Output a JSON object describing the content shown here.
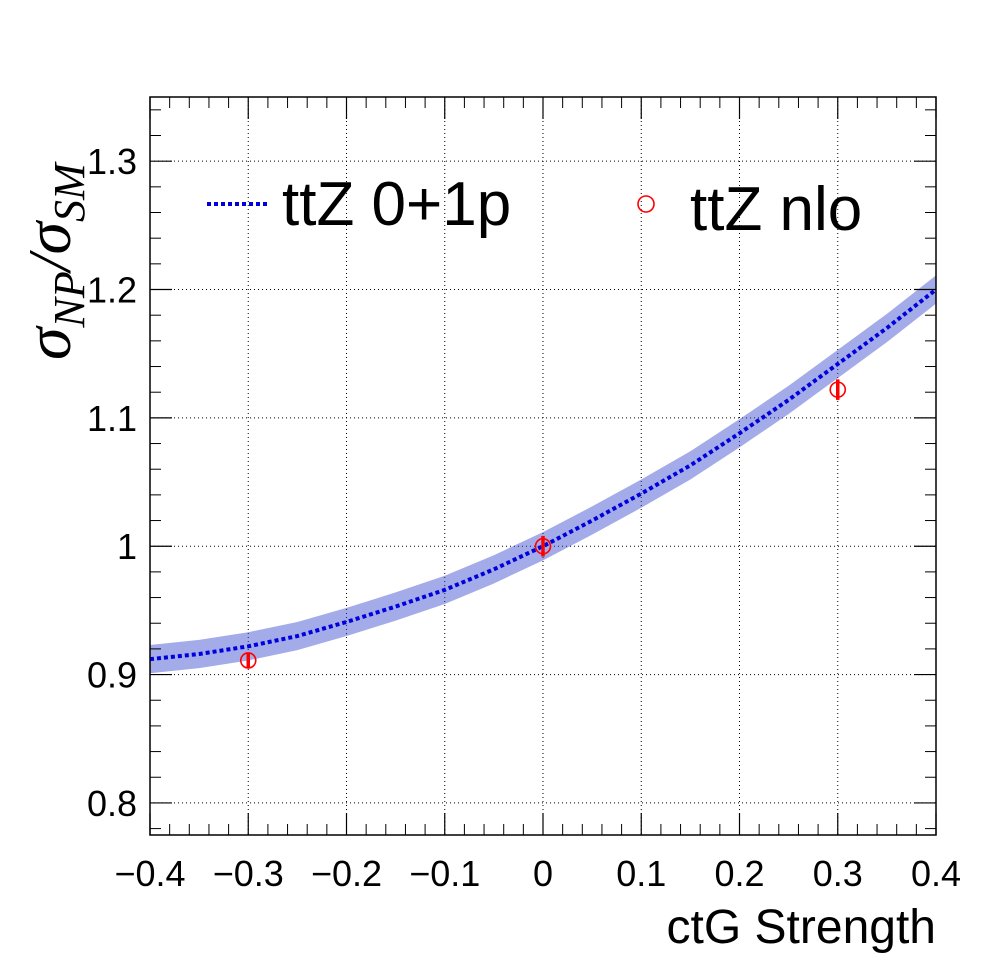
{
  "chart_data": {
    "type": "line",
    "xlabel": "ctG Strength",
    "ylabel": {
      "sym1": "σ",
      "sub1": "NP",
      "slash": "/",
      "sym2": "σ",
      "sub2": "SM"
    },
    "xlim": [
      -0.4,
      0.4
    ],
    "ylim": [
      0.775,
      1.35
    ],
    "x_ticks": [
      "−0.4",
      "−0.3",
      "−0.2",
      "−0.1",
      "0",
      "0.1",
      "0.2",
      "0.3",
      "0.4"
    ],
    "x_tick_values": [
      -0.4,
      -0.3,
      -0.2,
      -0.1,
      0,
      0.1,
      0.2,
      0.3,
      0.4
    ],
    "y_ticks": [
      "0.8",
      "0.9",
      "1",
      "1.1",
      "1.2",
      "1.3"
    ],
    "y_tick_values": [
      0.8,
      0.9,
      1.0,
      1.1,
      1.2,
      1.3
    ],
    "grid": true,
    "legend": "top",
    "series": [
      {
        "name": "ttZ 0+1p",
        "color": "#0000dd",
        "style": "dotted-line-with-band",
        "x": [
          -0.4,
          -0.35,
          -0.3,
          -0.25,
          -0.2,
          -0.15,
          -0.1,
          -0.05,
          0,
          0.05,
          0.1,
          0.15,
          0.2,
          0.25,
          0.3,
          0.35,
          0.4
        ],
        "y": [
          0.912,
          0.916,
          0.922,
          0.93,
          0.941,
          0.953,
          0.966,
          0.982,
          1.0,
          1.02,
          1.041,
          1.063,
          1.088,
          1.114,
          1.142,
          1.17,
          1.2
        ],
        "band_halfwidth": 0.011
      },
      {
        "name": "ttZ nlo",
        "color": "#ff0000",
        "style": "open-circle-with-errors",
        "x": [
          -0.3,
          0.0,
          0.3
        ],
        "y": [
          0.911,
          1.0,
          1.122
        ],
        "yerr": [
          0.006,
          0.008,
          0.008
        ]
      }
    ]
  }
}
